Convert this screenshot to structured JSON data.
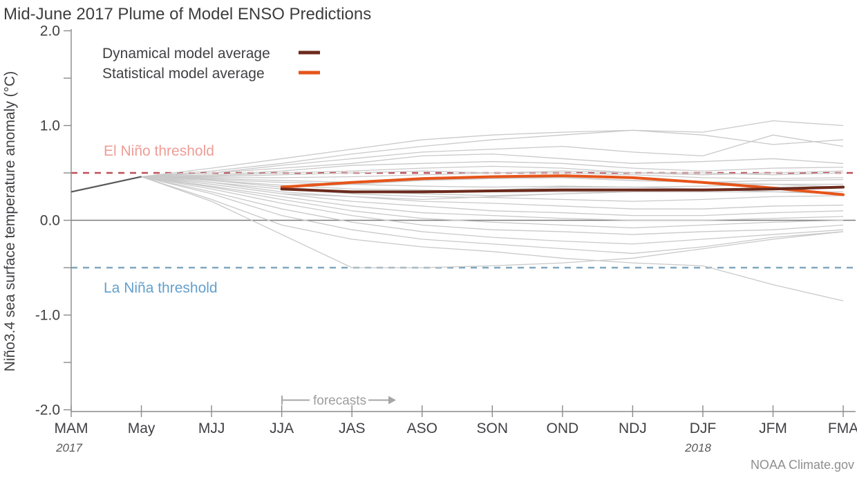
{
  "title": "Mid-June 2017 Plume of Model ENSO Predictions",
  "credit": "NOAA Climate.gov",
  "colors": {
    "dynamical": "#6b2a1c",
    "statistical": "#e6551a",
    "el_nino_line": "#bf4e57",
    "el_nino_label": "#ee9d96",
    "la_nina_line": "#7fa6bd",
    "la_nina_label": "#64a0cc",
    "model_gray": "#c9c9c9",
    "observed_gray": "#58585a",
    "axis_gray": "#8a8a8a",
    "zero_line": "#7a7a7a"
  },
  "legend": [
    {
      "label": "Dynamical model average",
      "color": "#6b2a1c"
    },
    {
      "label": "Statistical model average",
      "color": "#e6551a"
    }
  ],
  "annotations": {
    "el_nino": "El Niño threshold",
    "la_nina": "La Niña threshold",
    "forecasts": "forecasts",
    "year_left": "2017",
    "year_right": "2018"
  },
  "chart_data": {
    "type": "line",
    "title": "Mid-June 2017 Plume of Model ENSO Predictions",
    "xlabel": "",
    "ylabel": "Niño3.4 sea surface temperature anomaly (°C)",
    "x_categories": [
      "MAM",
      "May",
      "MJJ",
      "JJA",
      "JAS",
      "ASO",
      "SON",
      "OND",
      "NDJ",
      "DJF",
      "JFM",
      "FMA"
    ],
    "ylim": [
      -2.0,
      2.0
    ],
    "grid": false,
    "legend_position": "top-left",
    "yticks": [
      {
        "value": 2.0,
        "label": "2.0"
      },
      {
        "value": 1.5,
        "label": ""
      },
      {
        "value": 1.0,
        "label": "1.0"
      },
      {
        "value": 0.5,
        "label": ""
      },
      {
        "value": 0.0,
        "label": "0.0"
      },
      {
        "value": -0.5,
        "label": ""
      },
      {
        "value": -1.0,
        "label": "-1.0"
      },
      {
        "value": -1.5,
        "label": ""
      },
      {
        "value": -2.0,
        "label": "-2.0"
      }
    ],
    "thresholds": {
      "el_nino": 0.5,
      "la_nina": -0.5
    },
    "observed": {
      "name": "observed",
      "start_index": 0,
      "values": [
        0.3,
        0.46
      ]
    },
    "series": [
      {
        "name": "Dynamical model average",
        "color": "#6b2a1c",
        "start_index": 3,
        "values": [
          0.33,
          0.3,
          0.3,
          0.31,
          0.32,
          0.32,
          0.32,
          0.33,
          0.35
        ]
      },
      {
        "name": "Statistical model average",
        "color": "#e6551a",
        "start_index": 3,
        "values": [
          0.35,
          0.4,
          0.44,
          0.46,
          0.47,
          0.45,
          0.4,
          0.34,
          0.27
        ]
      }
    ],
    "models": [
      {
        "start_index": 1,
        "values": [
          0.46,
          0.55,
          0.65,
          0.75,
          0.85,
          0.9,
          0.93,
          0.95,
          0.93,
          1.05,
          1.0
        ]
      },
      {
        "start_index": 1,
        "values": [
          0.46,
          0.52,
          0.6,
          0.7,
          0.78,
          0.85,
          0.9,
          0.95,
          0.9,
          0.8,
          0.85
        ]
      },
      {
        "start_index": 1,
        "values": [
          0.46,
          0.5,
          0.58,
          0.65,
          0.72,
          0.75,
          0.78,
          0.72,
          0.68,
          0.9,
          0.78
        ]
      },
      {
        "start_index": 1,
        "values": [
          0.46,
          0.5,
          0.55,
          0.6,
          0.68,
          0.7,
          0.65,
          0.6,
          0.62,
          0.65,
          0.6
        ]
      },
      {
        "start_index": 1,
        "values": [
          0.46,
          0.48,
          0.52,
          0.58,
          0.6,
          0.62,
          0.6,
          0.55,
          0.52,
          0.55,
          0.56
        ]
      },
      {
        "start_index": 1,
        "values": [
          0.46,
          0.47,
          0.5,
          0.52,
          0.55,
          0.57,
          0.55,
          0.5,
          0.48,
          0.5,
          0.52
        ]
      },
      {
        "start_index": 1,
        "values": [
          0.46,
          0.46,
          0.48,
          0.5,
          0.52,
          0.5,
          0.52,
          0.5,
          0.5,
          0.48,
          0.5
        ]
      },
      {
        "start_index": 1,
        "values": [
          0.46,
          0.45,
          0.45,
          0.46,
          0.48,
          0.5,
          0.5,
          0.48,
          0.45,
          0.44,
          0.45
        ]
      },
      {
        "start_index": 1,
        "values": [
          0.46,
          0.44,
          0.42,
          0.4,
          0.42,
          0.44,
          0.45,
          0.42,
          0.4,
          0.42,
          0.43
        ]
      },
      {
        "start_index": 1,
        "values": [
          0.46,
          0.43,
          0.4,
          0.38,
          0.36,
          0.35,
          0.36,
          0.35,
          0.36,
          0.38,
          0.38
        ]
      },
      {
        "start_index": 1,
        "values": [
          0.46,
          0.42,
          0.37,
          0.33,
          0.32,
          0.3,
          0.3,
          0.3,
          0.32,
          0.33,
          0.35
        ]
      },
      {
        "start_index": 1,
        "values": [
          0.46,
          0.42,
          0.35,
          0.3,
          0.28,
          0.26,
          0.28,
          0.3,
          0.3,
          0.3,
          0.3
        ]
      },
      {
        "start_index": 1,
        "values": [
          0.46,
          0.4,
          0.33,
          0.28,
          0.25,
          0.24,
          0.22,
          0.2,
          0.22,
          0.25,
          0.26
        ]
      },
      {
        "start_index": 1,
        "values": [
          0.46,
          0.4,
          0.3,
          0.25,
          0.2,
          0.18,
          0.15,
          0.12,
          0.12,
          0.15,
          0.16
        ]
      },
      {
        "start_index": 1,
        "values": [
          0.46,
          0.38,
          0.28,
          0.2,
          0.15,
          0.1,
          0.08,
          0.05,
          0.05,
          0.08,
          0.1
        ]
      },
      {
        "start_index": 1,
        "values": [
          0.46,
          0.36,
          0.25,
          0.15,
          0.08,
          0.05,
          0.02,
          0.0,
          0.0,
          0.02,
          0.04
        ]
      },
      {
        "start_index": 1,
        "values": [
          0.46,
          0.35,
          0.22,
          0.1,
          0.02,
          -0.02,
          -0.05,
          -0.08,
          -0.05,
          -0.02,
          0.0
        ]
      },
      {
        "start_index": 1,
        "values": [
          0.46,
          0.33,
          0.18,
          0.05,
          -0.05,
          -0.1,
          -0.12,
          -0.15,
          -0.12,
          -0.1,
          -0.05
        ]
      },
      {
        "start_index": 1,
        "values": [
          0.46,
          0.3,
          0.12,
          -0.02,
          -0.12,
          -0.18,
          -0.22,
          -0.25,
          -0.2,
          -0.15,
          -0.1
        ]
      },
      {
        "start_index": 1,
        "values": [
          0.46,
          0.28,
          0.05,
          -0.1,
          -0.2,
          -0.25,
          -0.3,
          -0.35,
          -0.28,
          -0.18,
          -0.12
        ]
      },
      {
        "start_index": 1,
        "values": [
          0.46,
          0.2,
          -0.15,
          -0.5,
          -0.5,
          -0.48,
          -0.45,
          -0.4,
          -0.3,
          -0.2,
          -0.12
        ]
      },
      {
        "start_index": 1,
        "values": [
          0.46,
          0.22,
          -0.05,
          -0.2,
          -0.28,
          -0.33,
          -0.4,
          -0.45,
          -0.48,
          -0.68,
          -0.85
        ]
      },
      {
        "start_index": 3,
        "values": [
          0.32,
          0.3,
          0.3,
          0.32,
          0.35,
          0.35,
          0.33,
          0.3,
          0.28
        ]
      },
      {
        "start_index": 3,
        "values": [
          0.35,
          0.38,
          0.42,
          0.45,
          0.45,
          0.42,
          0.4,
          0.38,
          0.35
        ]
      },
      {
        "start_index": 3,
        "values": [
          0.28,
          0.25,
          0.22,
          0.25,
          0.28,
          0.3,
          0.32,
          0.35,
          0.35
        ]
      }
    ]
  }
}
